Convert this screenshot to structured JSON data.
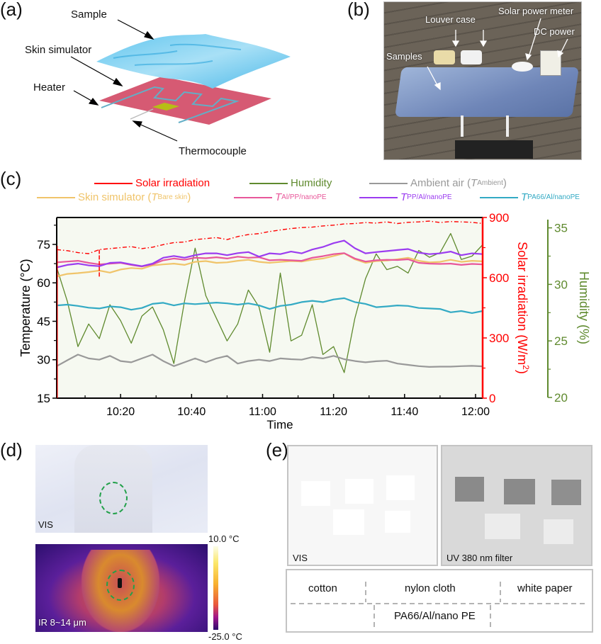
{
  "panels": {
    "a": {
      "label": "(a)",
      "annotations": {
        "sample": "Sample",
        "skin_simulator": "Skin simulator",
        "heater": "Heater",
        "thermocouple": "Thermocouple"
      }
    },
    "b": {
      "label": "(b)",
      "annotations": {
        "louver_case": "Louver case",
        "solar_power_meter": "Solar power meter",
        "dc_power": "DC power",
        "samples": "Samples"
      }
    },
    "c": {
      "label": "(c)"
    },
    "d": {
      "label": "(d)",
      "vis_label": "VIS",
      "ir_label": "IR 8~14 μm",
      "colorbar_max": "10.0 °C",
      "colorbar_min": "-25.0 °C"
    },
    "e": {
      "label": "(e)",
      "vis_label": "VIS",
      "uv_label": "UV 380 nm filter",
      "key": {
        "cotton": "cotton",
        "nylon_cloth": "nylon cloth",
        "white_paper": "white paper",
        "pa66": "PA66/Al/nano PE"
      }
    }
  },
  "chart_data": {
    "type": "line",
    "title": "",
    "xlabel": "Time",
    "x_unit": "minutes after 10:00",
    "xlim": [
      2,
      122
    ],
    "x_ticks": [
      {
        "value": 20,
        "label": "10:20"
      },
      {
        "value": 40,
        "label": "10:40"
      },
      {
        "value": 60,
        "label": "11:00"
      },
      {
        "value": 80,
        "label": "11:20"
      },
      {
        "value": 100,
        "label": "11:40"
      },
      {
        "value": 120,
        "label": "12:00"
      }
    ],
    "axes": {
      "left": {
        "label": "Temperature (°C)",
        "ylim": [
          15,
          85.5
        ],
        "ticks": [
          "15",
          "30",
          "45",
          "60",
          "75"
        ],
        "tick_values": [
          15,
          30,
          45,
          60,
          75
        ],
        "color": "#000000"
      },
      "right1": {
        "label": "Solar irradiation (W/m",
        "label_sup": "2",
        "label_end": ")",
        "ylim": [
          0,
          900
        ],
        "ticks": [
          "0",
          "300",
          "600",
          "900"
        ],
        "tick_values": [
          0,
          300,
          600,
          900
        ],
        "color": "#ff0000"
      },
      "right2": {
        "label": "Humidity (%)",
        "ylim": [
          20,
          35.1
        ],
        "ticks": [
          "20",
          "25",
          "30",
          "35"
        ],
        "tick_values": [
          20,
          25,
          30,
          35
        ],
        "color": "#5f8a2e"
      }
    },
    "grid": false,
    "plot_background": "#f6f9f1",
    "legend": {
      "placement": "top",
      "items": [
        {
          "key": "solar",
          "text": "Solar irradiation",
          "color": "#ff0000"
        },
        {
          "key": "humidity",
          "text": "Humidity",
          "color": "#5f8a2e"
        },
        {
          "key": "ambient",
          "text": "Ambient air (",
          "italic": "T",
          "sub": "Ambient",
          "end": ")",
          "color": "#999999"
        },
        {
          "key": "bare",
          "text": "Skin simulator (",
          "italic": "T",
          "sub": "Bare skin",
          "end": ")",
          "color": "#f0c46a"
        },
        {
          "key": "alpp",
          "text": "",
          "italic": "T",
          "sub": "Al/PP/nanoPE",
          "end": "",
          "color": "#e8579a"
        },
        {
          "key": "ppal",
          "text": "",
          "italic": "T",
          "sub": "PP/Al/nanoPE",
          "end": "",
          "color": "#9b3cf0"
        },
        {
          "key": "pa66",
          "text": "",
          "italic": "T",
          "sub": "PA66/Al/nanoPE",
          "end": "",
          "color": "#33aac4"
        }
      ]
    },
    "x": [
      2,
      5,
      8,
      11,
      14,
      17,
      20,
      23,
      26,
      29,
      32,
      35,
      38,
      41,
      44,
      47,
      50,
      53,
      56,
      59,
      62,
      65,
      68,
      71,
      74,
      77,
      80,
      83,
      86,
      89,
      92,
      95,
      98,
      101,
      104,
      107,
      110,
      113,
      116,
      119,
      122
    ],
    "series": [
      {
        "name": "Solar irradiation",
        "axis": "right1",
        "color": "#ff0000",
        "style": "dashdot",
        "values": [
          740,
          735,
          725,
          720,
          740,
          745,
          750,
          755,
          745,
          752,
          765,
          775,
          778,
          790,
          795,
          800,
          790,
          805,
          815,
          820,
          830,
          838,
          845,
          850,
          852,
          858,
          862,
          868,
          870,
          875,
          872,
          878,
          870,
          876,
          878,
          882,
          875,
          880,
          878,
          876,
          870
        ]
      },
      {
        "name": "Humidity",
        "axis": "right2",
        "color": "#5f8a2e",
        "style": "solid",
        "values": [
          31.5,
          28.5,
          24.5,
          26.5,
          25.2,
          28.2,
          26.8,
          24.8,
          27.2,
          28.0,
          26.0,
          23.0,
          28.5,
          33.2,
          29.0,
          27.0,
          25.0,
          26.5,
          29.5,
          28.0,
          24.0,
          31.0,
          25.0,
          25.5,
          28.2,
          23.8,
          24.5,
          22.2,
          27.0,
          30.5,
          32.7,
          31.3,
          31.6,
          31.0,
          33.0,
          32.4,
          32.8,
          34.5,
          32.2,
          32.5,
          33.5
        ]
      },
      {
        "name": "Ambient air (T Ambient)",
        "axis": "left",
        "color": "#999999",
        "style": "solid",
        "values": [
          27.5,
          29.8,
          32.0,
          30.5,
          30.0,
          31.5,
          29.5,
          29.0,
          30.5,
          32.0,
          29.5,
          27.5,
          29.0,
          30.5,
          29.0,
          30.5,
          31.5,
          28.5,
          29.5,
          30.0,
          29.5,
          30.5,
          30.2,
          30.0,
          31.0,
          30.5,
          31.5,
          30.2,
          29.5,
          29.0,
          29.4,
          29.6,
          28.5,
          28.0,
          27.5,
          27.2,
          27.3,
          27.3,
          27.5,
          27.6,
          27.4
        ]
      },
      {
        "name": "Skin simulator (T Bare skin)",
        "axis": "left",
        "color": "#f0c46a",
        "style": "solid",
        "values": [
          62.5,
          63.5,
          63.8,
          64.2,
          64.8,
          64.0,
          65.2,
          65.8,
          65.5,
          66.8,
          67.2,
          67.5,
          67.0,
          68.2,
          68.5,
          67.8,
          68.0,
          68.6,
          69.0,
          68.2,
          67.8,
          68.2,
          68.5,
          68.3,
          69.0,
          69.5,
          70.5,
          71.5,
          69.2,
          67.8,
          68.5,
          68.7,
          69.2,
          69.8,
          68.6,
          68.0,
          68.2,
          69.0,
          68.2,
          68.6,
          68.4
        ]
      },
      {
        "name": "T Al/PP/nanoPE",
        "axis": "left",
        "color": "#e8579a",
        "style": "solid",
        "values": [
          68.0,
          68.3,
          68.6,
          67.8,
          67.2,
          67.5,
          67.8,
          67.0,
          66.4,
          67.2,
          68.8,
          69.5,
          69.0,
          69.8,
          69.6,
          70.0,
          69.5,
          70.2,
          69.8,
          70.0,
          68.8,
          69.0,
          68.8,
          68.6,
          69.8,
          70.4,
          71.2,
          71.6,
          69.5,
          68.3,
          68.8,
          69.0,
          68.9,
          69.2,
          67.8,
          67.5,
          67.4,
          67.5,
          67.0,
          67.4,
          67.2
        ]
      },
      {
        "name": "T PP/Al/nanoPE",
        "axis": "left",
        "color": "#9b3cf0",
        "style": "solid",
        "values": [
          66.0,
          67.0,
          67.5,
          66.8,
          66.5,
          67.8,
          68.0,
          67.2,
          66.5,
          67.5,
          69.8,
          70.5,
          69.8,
          70.8,
          71.5,
          71.5,
          70.8,
          71.6,
          72.0,
          70.2,
          71.5,
          71.2,
          72.2,
          71.5,
          73.0,
          74.0,
          75.5,
          76.5,
          73.5,
          71.5,
          72.0,
          72.4,
          72.8,
          73.2,
          71.8,
          71.2,
          71.5,
          72.2,
          70.8,
          71.5,
          71.2
        ]
      },
      {
        "name": "T PA66/Al/nanoPE",
        "axis": "left",
        "color": "#33aac4",
        "style": "solid",
        "values": [
          51.2,
          51.5,
          51.0,
          50.3,
          50.0,
          50.8,
          50.5,
          49.5,
          50.2,
          51.8,
          52.2,
          51.2,
          52.0,
          51.7,
          52.0,
          52.3,
          52.0,
          51.5,
          52.0,
          51.2,
          49.8,
          51.0,
          51.5,
          52.5,
          53.0,
          52.5,
          53.5,
          54.0,
          52.5,
          51.8,
          50.5,
          50.8,
          51.2,
          51.0,
          50.2,
          50.0,
          49.8,
          48.5,
          49.0,
          48.2,
          49.0
        ]
      }
    ]
  }
}
